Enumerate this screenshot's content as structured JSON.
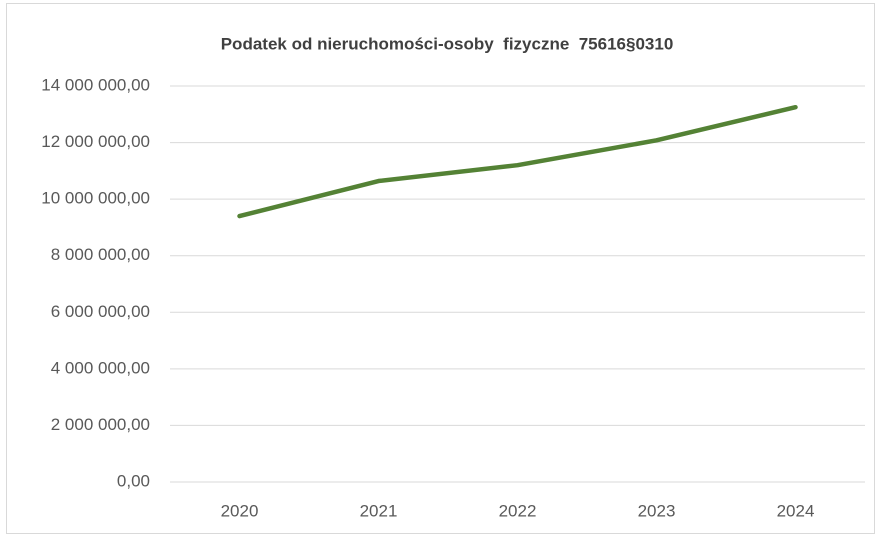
{
  "chart_data": {
    "type": "line",
    "title": "Podatek od nieruchomości-osoby  fizyczne  75616§0310",
    "categories": [
      "2020",
      "2021",
      "2022",
      "2023",
      "2024"
    ],
    "series": [
      {
        "name": "Podatek",
        "color": "#548235",
        "values": [
          9400000,
          10640000,
          11200000,
          12080000,
          13250000
        ]
      }
    ],
    "ylim": [
      0,
      14000000
    ],
    "yticks": [
      {
        "value": 0,
        "label": "0,00"
      },
      {
        "value": 2000000,
        "label": "2 000 000,00"
      },
      {
        "value": 4000000,
        "label": "4 000 000,00"
      },
      {
        "value": 6000000,
        "label": "6 000 000,00"
      },
      {
        "value": 8000000,
        "label": "8 000 000,00"
      },
      {
        "value": 10000000,
        "label": "10 000 000,00"
      },
      {
        "value": 12000000,
        "label": "12 000 000,00"
      },
      {
        "value": 14000000,
        "label": "14 000 000,00"
      }
    ],
    "grid": true
  }
}
